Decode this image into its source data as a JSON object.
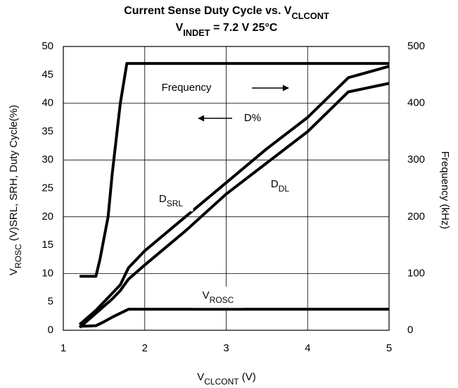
{
  "chart_data": {
    "type": "line",
    "title": [
      "Current Sense Duty Cycle vs. V",
      "CLCONT"
    ],
    "subtitle": [
      "V",
      "INDET",
      " = 7.2 V 25°C"
    ],
    "x_label": [
      "V",
      "CLCONT",
      " (V)"
    ],
    "y_label": [
      "V",
      "ROSC",
      " (V)SRL, SRH, Duty Cycle(%)"
    ],
    "y2_label": "Frequency (kHz)",
    "annotation": "D%",
    "xlim": [
      1,
      5
    ],
    "xticks": [
      1,
      2,
      3,
      4,
      5
    ],
    "ylim": [
      0,
      50
    ],
    "yticks": [
      0,
      5,
      10,
      15,
      20,
      25,
      30,
      35,
      40,
      45,
      50
    ],
    "y2lim": [
      0,
      500
    ],
    "y2ticks": [
      0,
      100,
      200,
      300,
      400,
      500
    ],
    "grid": true,
    "series": [
      {
        "name": [
          "Frequency"
        ],
        "color": "#000000",
        "axis": "y2",
        "x": [
          1.2,
          1.4,
          1.45,
          1.55,
          1.6,
          1.7,
          1.78,
          5
        ],
        "values": [
          95,
          95,
          125,
          200,
          275,
          400,
          470,
          470
        ]
      },
      {
        "name": [
          "D",
          "SRL"
        ],
        "color": "#000000",
        "x": [
          1.2,
          1.4,
          1.6,
          1.7,
          1.8,
          2,
          2.5,
          3,
          3.5,
          4,
          4.5,
          5
        ],
        "values": [
          1,
          3.5,
          6.5,
          8,
          11,
          14,
          20,
          26,
          32,
          37.5,
          44.5,
          46.5
        ]
      },
      {
        "name": [
          "D",
          "DL"
        ],
        "color": "#000000",
        "x": [
          1.2,
          1.4,
          1.6,
          1.7,
          1.8,
          2,
          2.5,
          3,
          3.5,
          4,
          4.5,
          5
        ],
        "values": [
          0.5,
          3,
          5.5,
          7,
          9,
          11.5,
          17.5,
          24,
          29.5,
          35,
          42,
          43.5
        ]
      },
      {
        "name": [
          "V",
          "ROSC"
        ],
        "color": "#000000",
        "x": [
          1.2,
          1.4,
          1.5,
          1.6,
          1.7,
          1.8,
          5
        ],
        "values": [
          0.7,
          0.8,
          1.5,
          2.3,
          3,
          3.7,
          3.7
        ]
      }
    ]
  }
}
